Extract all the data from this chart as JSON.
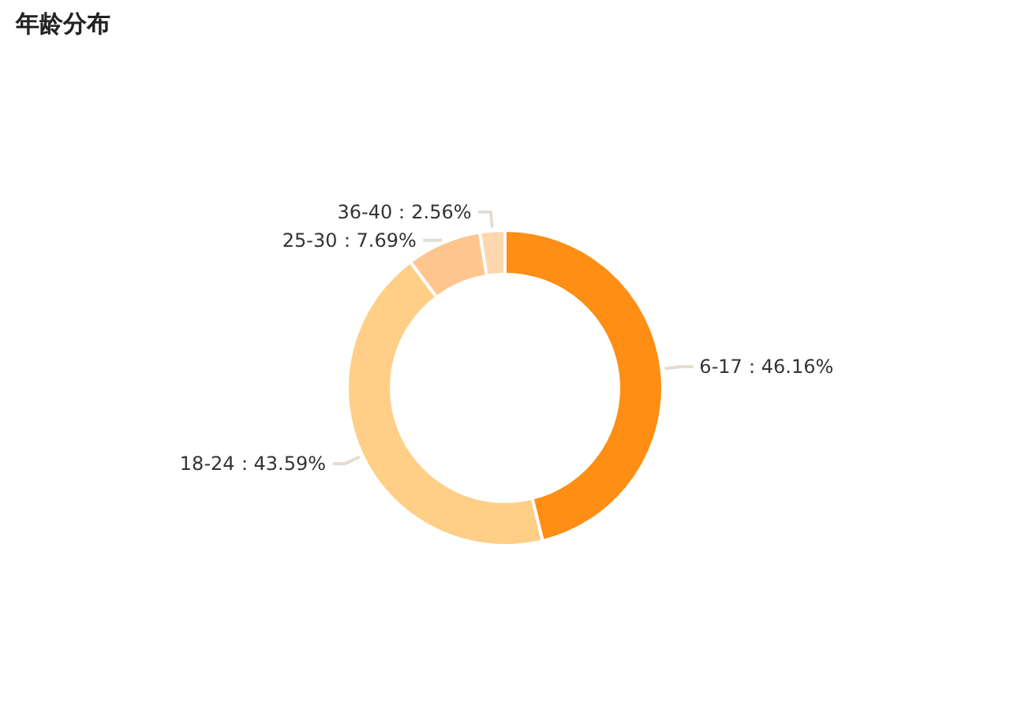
{
  "chart_data": {
    "type": "donut",
    "title": "年龄分布",
    "categories": [
      "6-17",
      "18-24",
      "25-30",
      "36-40"
    ],
    "values": [
      46.16,
      43.59,
      7.69,
      2.56
    ],
    "colors": [
      "#fe8e14",
      "#ffcf87",
      "#ffc58f",
      "#ffd7ae"
    ],
    "value_labels": [
      "：46.16%",
      "：43.59%",
      "：7.69%",
      "：2.56%"
    ]
  }
}
